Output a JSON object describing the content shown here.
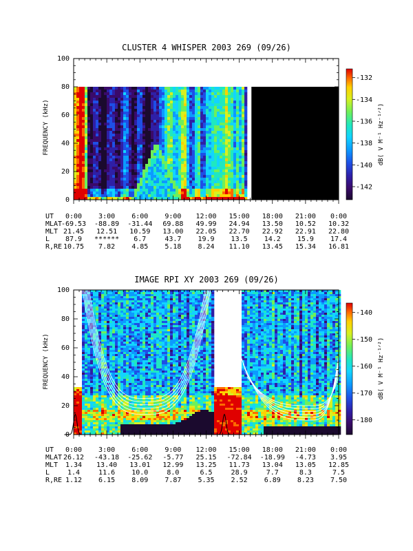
{
  "chart_data": [
    {
      "type": "heatmap",
      "title": "CLUSTER 4 WHISPER 2003 269 (09/26)",
      "ylabel": "FREQUENCY (kHz)",
      "ylim": [
        0,
        100
      ],
      "yticks": [
        "0",
        "20",
        "40",
        "60",
        "80",
        "100"
      ],
      "xlim_hours": [
        0,
        24
      ],
      "data_freq_max_khz": 80,
      "data_end_hour": 15.7,
      "no_data_after_hour": 16.1,
      "colorbar": {
        "label": "dB( V M⁻¹ Hz⁻¹ᐟ²)",
        "label_main": "dB( V M",
        "range": [
          -143.2,
          -131.2
        ],
        "ticks": [
          "-132",
          "-134",
          "-136",
          "-138",
          "-140",
          "-142"
        ],
        "tick_values": [
          -132,
          -134,
          -136,
          -138,
          -140,
          -142
        ]
      },
      "ephemeris": {
        "row_labels": [
          "UT",
          "MLAT",
          "MLT",
          "L",
          "R,RE"
        ],
        "columns": [
          [
            "0:00",
            "-69.53",
            "21.45",
            "87.9",
            "10.75"
          ],
          [
            "3:00",
            "-88.89",
            "12.51",
            "******",
            "7.82"
          ],
          [
            "6:00",
            "-31.44",
            "10.59",
            "6.7",
            "4.85"
          ],
          [
            "9:00",
            "69.88",
            "13.00",
            "43.7",
            "5.18"
          ],
          [
            "12:00",
            "49.99",
            "22.05",
            "19.9",
            "8.24"
          ],
          [
            "15:00",
            "24.94",
            "22.70",
            "13.5",
            "11.10"
          ],
          [
            "18:00",
            "13.50",
            "22.92",
            "14.2",
            "13.45"
          ],
          [
            "21:00",
            "10.52",
            "22.91",
            "15.9",
            "15.34"
          ],
          [
            "0:00",
            "10.32",
            "22.80",
            "17.4",
            "16.81"
          ]
        ]
      }
    },
    {
      "type": "heatmap",
      "title": "IMAGE RPI XY 2003 269 (09/26)",
      "ylabel": "FREQUENCY (kHz)",
      "ylim": [
        0,
        100
      ],
      "yticks": [
        "0",
        "20",
        "40",
        "60",
        "80",
        "100"
      ],
      "xlim_hours": [
        0,
        24
      ],
      "low_freq_only_khz": 33,
      "data_gaps_hours": [
        [
          0.0,
          0.6
        ],
        [
          12.5,
          15.0
        ]
      ],
      "colorbar": {
        "label": "dB( V M⁻¹ Hz⁻¹ᐟ²)",
        "label_main": "dB( V M",
        "range": [
          -185.5,
          -136.5
        ],
        "ticks": [
          "-140",
          "-150",
          "-160",
          "-170",
          "-180"
        ],
        "tick_values": [
          -140,
          -150,
          -160,
          -170,
          -180
        ]
      },
      "ephemeris": {
        "row_labels": [
          "UT",
          "MLAT",
          "MLT",
          "L",
          "R,RE"
        ],
        "columns": [
          [
            "0:00",
            "26.12",
            "1.34",
            "1.4",
            "1.12"
          ],
          [
            "3:00",
            "-43.18",
            "13.40",
            "11.6",
            "6.15"
          ],
          [
            "6:00",
            "-25.62",
            "13.01",
            "10.0",
            "8.09"
          ],
          [
            "9:00",
            "-5.77",
            "12.99",
            "8.0",
            "7.87"
          ],
          [
            "12:00",
            "25.15",
            "13.25",
            "6.5",
            "5.35"
          ],
          [
            "15:00",
            "-72.84",
            "11.73",
            "28.9",
            "2.52"
          ],
          [
            "18:00",
            "-18.99",
            "13.04",
            "7.7",
            "6.89"
          ],
          [
            "21:00",
            "-4.73",
            "13.05",
            "8.3",
            "8.23"
          ],
          [
            "0:00",
            "3.95",
            "12.85",
            "7.5",
            "7.50"
          ]
        ]
      }
    }
  ],
  "colors": {
    "colormap": [
      "#1b0a2e",
      "#3a0a6a",
      "#2f1fa6",
      "#1e4fe6",
      "#0c9aff",
      "#12d4ff",
      "#1fe8c0",
      "#6ef05a",
      "#d8f020",
      "#ffd000",
      "#ff6a00",
      "#e00000"
    ],
    "no_data": "#000000",
    "gap": "#ffffff",
    "curves": "#ffffff"
  }
}
